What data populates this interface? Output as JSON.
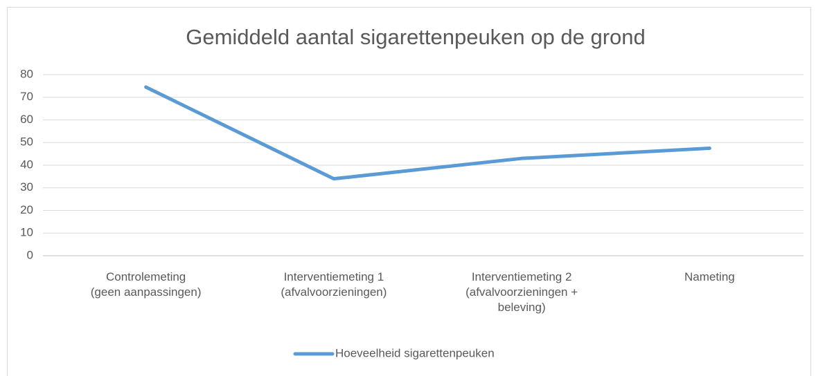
{
  "chart_data": {
    "type": "line",
    "title": "Gemiddeld aantal sigarettenpeuken op de grond",
    "categories": [
      "Controlemeting\n(geen aanpassingen)",
      "Interventiemeting 1\n(afvalvoorzieningen)",
      "Interventiemeting 2\n(afvalvoorzieningen +\nbeleving)",
      "Nameting"
    ],
    "series": [
      {
        "name": "Hoeveelheid sigarettenpeuken",
        "color": "#5b9bd5",
        "values": [
          74.5,
          34,
          43,
          47.5
        ]
      }
    ],
    "ylim": [
      0,
      80
    ],
    "yticks": [
      0,
      10,
      20,
      30,
      40,
      50,
      60,
      70,
      80
    ],
    "grid": true,
    "legend": "bottom"
  }
}
